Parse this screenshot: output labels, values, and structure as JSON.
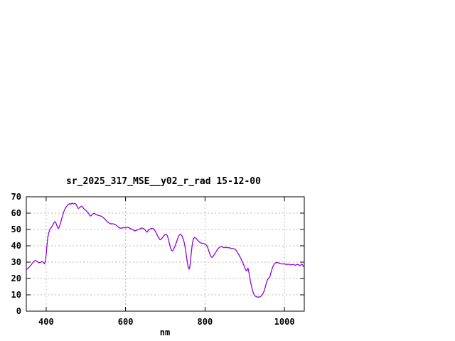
{
  "page": {
    "background": "#ffffff"
  },
  "chart_data": {
    "type": "line",
    "title": "sr_2025_317_MSE__y02_r_rad 15-12-00",
    "xlabel": "nm",
    "ylabel": "",
    "xlim": [
      350,
      1050
    ],
    "ylim": [
      0,
      70
    ],
    "x_ticks": [
      400,
      600,
      800,
      1000
    ],
    "y_ticks": [
      0,
      10,
      20,
      30,
      40,
      50,
      60,
      70
    ],
    "grid": true,
    "legend": "none",
    "colors": {
      "line": "#9400d3",
      "grid": "#b8b8b8",
      "axis": "#000000",
      "text": "#000000",
      "background": "#ffffff"
    },
    "series": [
      {
        "name": "sr_2025_317_MSE__y02_r_rad",
        "points": [
          [
            350,
            25.4
          ],
          [
            353,
            26.0
          ],
          [
            356,
            26.6
          ],
          [
            359,
            27.4
          ],
          [
            362,
            28.3
          ],
          [
            365,
            29.3
          ],
          [
            368,
            30.2
          ],
          [
            371,
            30.8
          ],
          [
            374,
            31.0
          ],
          [
            377,
            30.5
          ],
          [
            380,
            29.9
          ],
          [
            383,
            29.6
          ],
          [
            386,
            29.9
          ],
          [
            389,
            30.4
          ],
          [
            392,
            30.1
          ],
          [
            394,
            29.4
          ],
          [
            396,
            29.0
          ],
          [
            398,
            30.4
          ],
          [
            400,
            34.5
          ],
          [
            402,
            40.0
          ],
          [
            404,
            45.0
          ],
          [
            406,
            47.5
          ],
          [
            408,
            49.0
          ],
          [
            410,
            50.3
          ],
          [
            412,
            51.0
          ],
          [
            414,
            51.6
          ],
          [
            416,
            52.3
          ],
          [
            418,
            53.3
          ],
          [
            420,
            54.2
          ],
          [
            422,
            54.8
          ],
          [
            424,
            54.3
          ],
          [
            426,
            53.0
          ],
          [
            428,
            51.6
          ],
          [
            430,
            50.6
          ],
          [
            432,
            51.0
          ],
          [
            434,
            52.1
          ],
          [
            436,
            53.8
          ],
          [
            438,
            55.6
          ],
          [
            440,
            57.3
          ],
          [
            442,
            59.0
          ],
          [
            444,
            60.5
          ],
          [
            446,
            61.8
          ],
          [
            448,
            62.8
          ],
          [
            450,
            63.6
          ],
          [
            452,
            64.3
          ],
          [
            454,
            64.9
          ],
          [
            456,
            65.3
          ],
          [
            458,
            65.6
          ],
          [
            460,
            65.8
          ],
          [
            462,
            65.4
          ],
          [
            464,
            65.9
          ],
          [
            466,
            66.1
          ],
          [
            468,
            65.6
          ],
          [
            470,
            65.8
          ],
          [
            472,
            66.0
          ],
          [
            474,
            65.7
          ],
          [
            476,
            65.1
          ],
          [
            478,
            64.1
          ],
          [
            480,
            63.1
          ],
          [
            482,
            62.9
          ],
          [
            484,
            63.3
          ],
          [
            486,
            63.8
          ],
          [
            488,
            64.1
          ],
          [
            490,
            64.2
          ],
          [
            492,
            63.8
          ],
          [
            494,
            63.0
          ],
          [
            496,
            62.4
          ],
          [
            498,
            62.0
          ],
          [
            500,
            61.7
          ],
          [
            502,
            61.2
          ],
          [
            504,
            60.7
          ],
          [
            506,
            60.1
          ],
          [
            508,
            59.2
          ],
          [
            510,
            58.5
          ],
          [
            512,
            58.2
          ],
          [
            514,
            58.5
          ],
          [
            516,
            59.1
          ],
          [
            518,
            59.6
          ],
          [
            520,
            59.9
          ],
          [
            522,
            59.7
          ],
          [
            524,
            59.4
          ],
          [
            526,
            59.1
          ],
          [
            528,
            58.9
          ],
          [
            530,
            58.7
          ],
          [
            533,
            58.5
          ],
          [
            536,
            58.3
          ],
          [
            539,
            58.1
          ],
          [
            542,
            57.6
          ],
          [
            545,
            57.0
          ],
          [
            548,
            56.3
          ],
          [
            551,
            55.5
          ],
          [
            554,
            54.8
          ],
          [
            557,
            54.2
          ],
          [
            560,
            53.7
          ],
          [
            563,
            53.4
          ],
          [
            566,
            53.5
          ],
          [
            569,
            53.4
          ],
          [
            572,
            53.2
          ],
          [
            575,
            52.9
          ],
          [
            578,
            52.2
          ],
          [
            581,
            51.6
          ],
          [
            584,
            51.1
          ],
          [
            587,
            50.8
          ],
          [
            590,
            50.8
          ],
          [
            593,
            51.1
          ],
          [
            596,
            51.1
          ],
          [
            599,
            51.0
          ],
          [
            602,
            51.1
          ],
          [
            605,
            51.4
          ],
          [
            608,
            51.1
          ],
          [
            611,
            50.7
          ],
          [
            614,
            50.4
          ],
          [
            617,
            50.1
          ],
          [
            620,
            49.6
          ],
          [
            623,
            49.1
          ],
          [
            626,
            49.4
          ],
          [
            629,
            49.7
          ],
          [
            632,
            49.9
          ],
          [
            635,
            50.2
          ],
          [
            638,
            50.6
          ],
          [
            640,
            50.9
          ],
          [
            643,
            50.7
          ],
          [
            646,
            50.4
          ],
          [
            649,
            49.9
          ],
          [
            652,
            48.6
          ],
          [
            654,
            48.4
          ],
          [
            656,
            49.0
          ],
          [
            659,
            49.9
          ],
          [
            662,
            50.3
          ],
          [
            665,
            50.6
          ],
          [
            668,
            50.6
          ],
          [
            671,
            50.2
          ],
          [
            674,
            49.2
          ],
          [
            677,
            47.9
          ],
          [
            680,
            46.4
          ],
          [
            683,
            45.2
          ],
          [
            686,
            43.9
          ],
          [
            688,
            43.7
          ],
          [
            690,
            44.2
          ],
          [
            693,
            45.1
          ],
          [
            696,
            46.1
          ],
          [
            699,
            46.8
          ],
          [
            701,
            47.0
          ],
          [
            703,
            46.9
          ],
          [
            705,
            46.2
          ],
          [
            707,
            44.8
          ],
          [
            709,
            42.8
          ],
          [
            711,
            40.9
          ],
          [
            713,
            39.0
          ],
          [
            715,
            37.6
          ],
          [
            717,
            36.9
          ],
          [
            719,
            37.1
          ],
          [
            721,
            37.9
          ],
          [
            724,
            39.5
          ],
          [
            727,
            41.5
          ],
          [
            730,
            43.6
          ],
          [
            733,
            45.5
          ],
          [
            735,
            46.5
          ],
          [
            737,
            47.0
          ],
          [
            739,
            47.0
          ],
          [
            741,
            46.5
          ],
          [
            743,
            45.6
          ],
          [
            745,
            44.3
          ],
          [
            747,
            42.5
          ],
          [
            749,
            40.2
          ],
          [
            751,
            37.5
          ],
          [
            753,
            34.2
          ],
          [
            755,
            30.8
          ],
          [
            757,
            27.8
          ],
          [
            759,
            26.0
          ],
          [
            760,
            25.7
          ],
          [
            761,
            26.3
          ],
          [
            763,
            29.5
          ],
          [
            765,
            34.5
          ],
          [
            767,
            39.0
          ],
          [
            769,
            42.2
          ],
          [
            771,
            44.2
          ],
          [
            773,
            45.1
          ],
          [
            775,
            45.0
          ],
          [
            777,
            44.6
          ],
          [
            779,
            44.2
          ],
          [
            781,
            43.5
          ],
          [
            783,
            43.0
          ],
          [
            785,
            42.5
          ],
          [
            787,
            42.1
          ],
          [
            789,
            41.8
          ],
          [
            791,
            41.7
          ],
          [
            794,
            41.5
          ],
          [
            797,
            41.3
          ],
          [
            800,
            41.0
          ],
          [
            802,
            40.7
          ],
          [
            804,
            40.2
          ],
          [
            806,
            39.4
          ],
          [
            808,
            38.1
          ],
          [
            810,
            36.6
          ],
          [
            812,
            35.1
          ],
          [
            814,
            33.9
          ],
          [
            816,
            33.1
          ],
          [
            818,
            32.9
          ],
          [
            820,
            33.4
          ],
          [
            822,
            34.1
          ],
          [
            824,
            34.9
          ],
          [
            827,
            36.0
          ],
          [
            830,
            37.2
          ],
          [
            832,
            37.9
          ],
          [
            834,
            38.5
          ],
          [
            836,
            38.9
          ],
          [
            838,
            39.2
          ],
          [
            840,
            39.4
          ],
          [
            842,
            39.5
          ],
          [
            844,
            39.3
          ],
          [
            846,
            39.0
          ],
          [
            848,
            38.8
          ],
          [
            850,
            39.0
          ],
          [
            852,
            39.1
          ],
          [
            854,
            39.0
          ],
          [
            856,
            38.8
          ],
          [
            858,
            38.9
          ],
          [
            861,
            38.8
          ],
          [
            864,
            38.6
          ],
          [
            867,
            38.4
          ],
          [
            870,
            38.3
          ],
          [
            873,
            38.2
          ],
          [
            876,
            37.9
          ],
          [
            878,
            37.3
          ],
          [
            880,
            36.6
          ],
          [
            882,
            35.8
          ],
          [
            884,
            35.0
          ],
          [
            886,
            34.2
          ],
          [
            888,
            33.3
          ],
          [
            890,
            32.4
          ],
          [
            892,
            31.4
          ],
          [
            894,
            30.3
          ],
          [
            896,
            29.1
          ],
          [
            898,
            27.9
          ],
          [
            900,
            26.7
          ],
          [
            902,
            25.6
          ],
          [
            904,
            24.6
          ],
          [
            906,
            25.0
          ],
          [
            908,
            26.4
          ],
          [
            910,
            24.6
          ],
          [
            912,
            21.6
          ],
          [
            914,
            18.9
          ],
          [
            916,
            16.5
          ],
          [
            918,
            14.3
          ],
          [
            920,
            12.4
          ],
          [
            922,
            11.0
          ],
          [
            924,
            10.0
          ],
          [
            926,
            9.4
          ],
          [
            928,
            9.0
          ],
          [
            930,
            8.8
          ],
          [
            933,
            8.6
          ],
          [
            936,
            8.6
          ],
          [
            939,
            8.8
          ],
          [
            941,
            9.2
          ],
          [
            943,
            9.7
          ],
          [
            945,
            10.4
          ],
          [
            947,
            11.2
          ],
          [
            949,
            12.4
          ],
          [
            951,
            14.0
          ],
          [
            953,
            15.9
          ],
          [
            955,
            17.6
          ],
          [
            957,
            19.0
          ],
          [
            959,
            19.9
          ],
          [
            961,
            20.3
          ],
          [
            963,
            20.9
          ],
          [
            965,
            22.5
          ],
          [
            967,
            24.3
          ],
          [
            969,
            26.0
          ],
          [
            971,
            27.2
          ],
          [
            973,
            28.2
          ],
          [
            975,
            28.9
          ],
          [
            977,
            29.4
          ],
          [
            979,
            29.7
          ],
          [
            981,
            29.9
          ],
          [
            983,
            29.7
          ],
          [
            985,
            29.5
          ],
          [
            988,
            29.3
          ],
          [
            991,
            29.1
          ],
          [
            994,
            28.9
          ],
          [
            997,
            28.9
          ],
          [
            1000,
            29.1
          ],
          [
            1003,
            28.7
          ],
          [
            1006,
            28.5
          ],
          [
            1009,
            28.8
          ],
          [
            1012,
            28.6
          ],
          [
            1015,
            28.3
          ],
          [
            1018,
            28.4
          ],
          [
            1021,
            28.6
          ],
          [
            1024,
            28.4
          ],
          [
            1027,
            28.1
          ],
          [
            1030,
            28.3
          ],
          [
            1033,
            28.6
          ],
          [
            1036,
            28.4
          ],
          [
            1039,
            27.9
          ],
          [
            1042,
            28.3
          ],
          [
            1044,
            28.9
          ],
          [
            1046,
            28.2
          ],
          [
            1048,
            27.4
          ],
          [
            1050,
            26.8
          ]
        ]
      }
    ]
  }
}
